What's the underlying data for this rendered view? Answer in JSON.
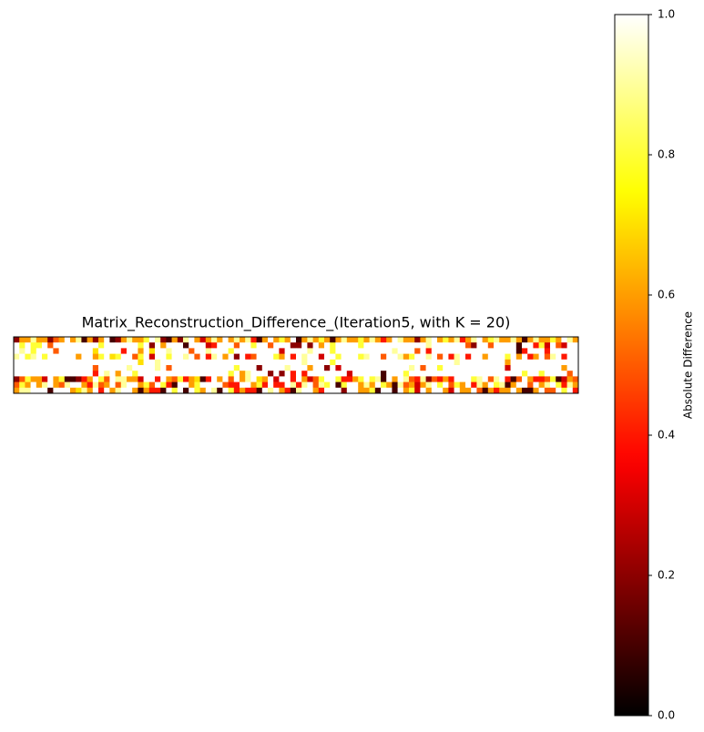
{
  "chart_data": {
    "type": "heatmap",
    "title": "Matrix_Reconstruction_Difference_(Iteration5, with K = 20)",
    "colorbar_label": "Absolute Difference",
    "colormap": "hot",
    "zlim": [
      0,
      1
    ],
    "zticks": [
      {
        "value": 0,
        "label": "0.0"
      },
      0.2,
      0.4,
      0.6,
      0.8,
      {
        "value": 1,
        "label": "1.0"
      }
    ],
    "values": [
      [
        0.2,
        0.6,
        0.6,
        0.9,
        0.6,
        0.6,
        0.2,
        0.5,
        0.6,
        1,
        0.6,
        0.9,
        0.1,
        0.6,
        0.2,
        0.6,
        1,
        0.1,
        0.2,
        0.6,
        0.9,
        0.6,
        0.6,
        0.8,
        1,
        0.9,
        0.2,
        0.1,
        0.6,
        0.2,
        0.9,
        1,
        0.6,
        0.3,
        0.6,
        0.9,
        0.6,
        1,
        0.6,
        0.9,
        0.6,
        0.9,
        0.4,
        0.1,
        0.6,
        1,
        0.6,
        0.8,
        0.6,
        1,
        0.1,
        0.6,
        0.9,
        0.6,
        0.8,
        0.6,
        0.1,
        0.6,
        0.9,
        0.6,
        0.6,
        0.8,
        0.6,
        0.9,
        0.6,
        0.4,
        0.6,
        1,
        0.9,
        0.6,
        0.6,
        0.2,
        0.6,
        0.9,
        1,
        0.6,
        0.8,
        0.6,
        0.9,
        0.4,
        0.6,
        0.9,
        1,
        0.6,
        0.8,
        0.9,
        0.6,
        0.6,
        0.9,
        0.6,
        0.1,
        0.6,
        0.9,
        0.6,
        0.6,
        0.8,
        0.6,
        1,
        0.9,
        0.6
      ],
      [
        1,
        0.8,
        1,
        0.8,
        0.8,
        1,
        0.5,
        1,
        1,
        1,
        1,
        1,
        1,
        1,
        1,
        0.8,
        1,
        1,
        1,
        1,
        1,
        1,
        0.8,
        1,
        0.2,
        1,
        0.6,
        1,
        1,
        1,
        0.1,
        1,
        1,
        1,
        0.3,
        0.4,
        1,
        1,
        1,
        0.5,
        1,
        1,
        0.8,
        1,
        1,
        0.5,
        1,
        1,
        1,
        0.2,
        0.2,
        1,
        0.2,
        1,
        0.6,
        1,
        0.8,
        1,
        1,
        1,
        1,
        0.8,
        1,
        1,
        1,
        1,
        1,
        1,
        1,
        1,
        1,
        1,
        1,
        0.9,
        1,
        1,
        1,
        1,
        1,
        1,
        0.5,
        0.2,
        1,
        1,
        0.5,
        1,
        1,
        1,
        1,
        0.1,
        1,
        1,
        0.4,
        0.8,
        0.3,
        1,
        0.5,
        0.3,
        1,
        1
      ],
      [
        1,
        0.9,
        1,
        0.8,
        1,
        1,
        1,
        0.5,
        1,
        1,
        1,
        1,
        1,
        1,
        0.7,
        1,
        1,
        1,
        1,
        0.4,
        1,
        1,
        0.6,
        1,
        0.7,
        1,
        1,
        0.9,
        1,
        1,
        1,
        0.5,
        1,
        1,
        0.9,
        1,
        1,
        1,
        0.8,
        1,
        1,
        1,
        1,
        1,
        1,
        1,
        1,
        0.3,
        1,
        1,
        1,
        1,
        0.9,
        1,
        1,
        1,
        0.8,
        1,
        1,
        1,
        1,
        1,
        1,
        1,
        1,
        1,
        1,
        0.9,
        1,
        1,
        1,
        0.5,
        1,
        0.4,
        1,
        1,
        1,
        1,
        1,
        1,
        1,
        1,
        1,
        1,
        1,
        1,
        1,
        1,
        1,
        0.1,
        0.4,
        1,
        1,
        1,
        0.4,
        1,
        1,
        1,
        1,
        1
      ],
      [
        0.9,
        1,
        0.8,
        0.9,
        1,
        0.8,
        1,
        1,
        1,
        1,
        1,
        0.6,
        1,
        1,
        0.6,
        0.8,
        1,
        0.7,
        0.8,
        1,
        1,
        0.5,
        0.8,
        1,
        0.3,
        1,
        1,
        0.8,
        1,
        1,
        0.9,
        1,
        0.5,
        1,
        0.4,
        0.9,
        1,
        0.6,
        1,
        0.2,
        1,
        0.4,
        0.5,
        1,
        1,
        1,
        0.8,
        0.6,
        1,
        0.4,
        1,
        0.9,
        1,
        1,
        0.3,
        1,
        1,
        0.8,
        1,
        1,
        1,
        0.8,
        0.9,
        1,
        1,
        0.5,
        1,
        1,
        0.9,
        0.6,
        0.8,
        1,
        1,
        0.9,
        1,
        0.5,
        1,
        0.4,
        0.9,
        1,
        0.4,
        1,
        1,
        0.6,
        1,
        1,
        1,
        0.8,
        1,
        0.6,
        1,
        0.4,
        0.6,
        1,
        0.5,
        0.9,
        1,
        0.4,
        1,
        1
      ],
      [
        1,
        1,
        1,
        1,
        1,
        1,
        1,
        1,
        1,
        1,
        1,
        1,
        1,
        1,
        1,
        1,
        1,
        1,
        1,
        1,
        1,
        1,
        0.7,
        1,
        1,
        0.9,
        1,
        1,
        1,
        1,
        1,
        1,
        1,
        1,
        1,
        1,
        1,
        1,
        1,
        1,
        1,
        1,
        1,
        1,
        1,
        1,
        1,
        1,
        1,
        1,
        1,
        0.9,
        1,
        1,
        1,
        1,
        0.8,
        1,
        1,
        1,
        1,
        1,
        1,
        1,
        1,
        1,
        1,
        1,
        1,
        1,
        1,
        1,
        1,
        1,
        1,
        1,
        1,
        1,
        0.9,
        1,
        1,
        1,
        1,
        1,
        1,
        1,
        1,
        0.6,
        1,
        1,
        1,
        1,
        1,
        1,
        1,
        1,
        1,
        1,
        1,
        1
      ],
      [
        1,
        1,
        1,
        1,
        1,
        1,
        1,
        1,
        1,
        1,
        1,
        1,
        1,
        1,
        0.5,
        1,
        1,
        1,
        1,
        1,
        0.9,
        1,
        1,
        1,
        1,
        0.9,
        1,
        0.5,
        1,
        1,
        1,
        1,
        1,
        1,
        1,
        1,
        1,
        1,
        1,
        0.8,
        1,
        1,
        1,
        0.2,
        1,
        1,
        1,
        1,
        0.9,
        1,
        1,
        1,
        0.6,
        1,
        1,
        0.2,
        1,
        0.3,
        1,
        1,
        1,
        1,
        1,
        1,
        1,
        1,
        1,
        1,
        1,
        1,
        0.9,
        1,
        0.5,
        1,
        1,
        0.8,
        1,
        1,
        1,
        1,
        1,
        1,
        1,
        1,
        1,
        1,
        1,
        0.3,
        1,
        1,
        1,
        1,
        1,
        1,
        1,
        1,
        1,
        0.6,
        1,
        1
      ],
      [
        1,
        1,
        1,
        1,
        1,
        1,
        1,
        1,
        1,
        1,
        1,
        1,
        1,
        1,
        0.4,
        1,
        0.9,
        1,
        0.6,
        1,
        1,
        0.8,
        1,
        1,
        1,
        1,
        1,
        1,
        1,
        1,
        1,
        1,
        1,
        1,
        1,
        1,
        1,
        1,
        0.8,
        1,
        0.6,
        0.9,
        1,
        1,
        1,
        0.2,
        1,
        0.2,
        1,
        0.4,
        1,
        0.4,
        1,
        1,
        1,
        1,
        1,
        1,
        1,
        0.3,
        1,
        1,
        1,
        1,
        1,
        0.1,
        1,
        1,
        1,
        0.8,
        1,
        1,
        1,
        1,
        1,
        1,
        1,
        1,
        1,
        1,
        1,
        1,
        1,
        1,
        1,
        1,
        1,
        1,
        1,
        1,
        0.8,
        1,
        1,
        0.8,
        1,
        1,
        1,
        1,
        0.5,
        1
      ],
      [
        0.2,
        0.5,
        0.8,
        0.6,
        0.6,
        0.3,
        1,
        0.6,
        0.8,
        0.1,
        0.1,
        0.2,
        0.4,
        0.6,
        1,
        0.8,
        0.5,
        1,
        0.9,
        0.9,
        0.6,
        0.6,
        0.3,
        1,
        1,
        0.4,
        1,
        0.6,
        0.5,
        0.8,
        0.4,
        0.6,
        0.7,
        0.1,
        0.4,
        1,
        0.6,
        1,
        0.5,
        1,
        0.6,
        0.9,
        1,
        0.7,
        0.6,
        1,
        0.3,
        1,
        1,
        0.4,
        1,
        0.6,
        0.3,
        0.5,
        0.8,
        1,
        1,
        0.8,
        0.4,
        0.4,
        0.6,
        0.8,
        1,
        0.8,
        0.9,
        0.1,
        1,
        0.6,
        1,
        0.9,
        0.5,
        0.4,
        0.9,
        0.2,
        0.5,
        0.4,
        0.6,
        0.4,
        1,
        1,
        1,
        0.8,
        0.9,
        1,
        0.5,
        0.9,
        1,
        0.4,
        0.1,
        0.5,
        1,
        0.6,
        0.4,
        0.4,
        0.5,
        0.8,
        0.1,
        0.3,
        0.6,
        0.5
      ],
      [
        0.5,
        0.8,
        0.6,
        1,
        0.6,
        0.9,
        1,
        0.6,
        0.5,
        0.9,
        1,
        1,
        0.6,
        0.4,
        0.9,
        0.5,
        0.6,
        1,
        0.5,
        0.9,
        1,
        1,
        0.6,
        0.8,
        0.5,
        1,
        0.8,
        0.4,
        0.1,
        1,
        1,
        0.6,
        0.8,
        1,
        1,
        1,
        1,
        0.5,
        0.4,
        0.4,
        1,
        1,
        0.6,
        0.8,
        0.4,
        1,
        0.4,
        0.4,
        1,
        0.9,
        0.4,
        0.9,
        1,
        0.5,
        0.9,
        0.8,
        1,
        0.1,
        0.8,
        1,
        1,
        0.6,
        0.9,
        0.6,
        1,
        0.8,
        0.6,
        0.1,
        0.9,
        0.5,
        0.6,
        0.3,
        0.6,
        0.9,
        1,
        0.8,
        1,
        0.5,
        0.8,
        0.6,
        1,
        0.4,
        0.9,
        0.6,
        1,
        0.8,
        0.9,
        0.1,
        0.6,
        1,
        1,
        0.5,
        1,
        0.6,
        0.9,
        1,
        0.8,
        0.4,
        0.9,
        0.6
      ],
      [
        0.6,
        0.9,
        0.9,
        1,
        1,
        1,
        0.1,
        1,
        1,
        1,
        0.6,
        0.7,
        0.9,
        0.6,
        1,
        0.4,
        1,
        0.6,
        0.9,
        1,
        1,
        0.6,
        0.1,
        0.6,
        0.4,
        0.4,
        0.1,
        1,
        0.8,
        1,
        0.1,
        1,
        0.8,
        0.6,
        1,
        0.9,
        0.1,
        1,
        0.8,
        0.4,
        0.6,
        0.4,
        0.4,
        0.1,
        1,
        0.9,
        1,
        0.6,
        0.4,
        0.1,
        0.9,
        1,
        1,
        0.6,
        0.4,
        1,
        1,
        1,
        0.2,
        1,
        1,
        0.6,
        0.6,
        0.8,
        0.1,
        1,
        1,
        0.1,
        1,
        0.6,
        0.8,
        0.3,
        1,
        0.6,
        1,
        1,
        0.6,
        0.3,
        1,
        0.6,
        0.6,
        1,
        0.5,
        0.1,
        0.6,
        0.4,
        0.6,
        0.6,
        1,
        0.6,
        0.1,
        0.1,
        0.6,
        1,
        0.5,
        0.5,
        1,
        0.8,
        1,
        0.4
      ]
    ]
  }
}
